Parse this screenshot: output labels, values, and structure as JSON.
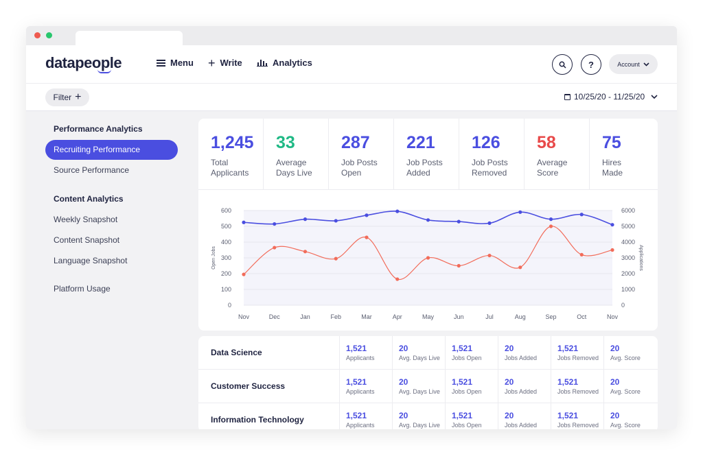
{
  "brand": {
    "logo": "datapeople"
  },
  "nav": {
    "menu": "Menu",
    "write": "Write",
    "analytics": "Analytics"
  },
  "header": {
    "search_icon": "search-icon",
    "help_label": "?",
    "account_label": "Account"
  },
  "filter": {
    "label": "Filter",
    "date_range": "10/25/20 - 11/25/20"
  },
  "sidebar": {
    "performance_heading": "Performance Analytics",
    "performance_items": [
      "Recruiting Performance",
      "Source Performance"
    ],
    "active_item": "Recruiting Performance",
    "content_heading": "Content Analytics",
    "content_items": [
      "Weekly Snapshot",
      "Content Snapshot",
      "Language Snapshot"
    ],
    "platform_item": "Platform Usage"
  },
  "stats": [
    {
      "value": "1,245",
      "label_line1": "Total",
      "label_line2": "Applicants",
      "color": "#4a4ee0"
    },
    {
      "value": "33",
      "label_line1": "Average",
      "label_line2": "Days Live",
      "color": "#1fb985"
    },
    {
      "value": "287",
      "label_line1": "Job Posts",
      "label_line2": "Open",
      "color": "#4a4ee0"
    },
    {
      "value": "221",
      "label_line1": "Job Posts",
      "label_line2": "Added",
      "color": "#4a4ee0"
    },
    {
      "value": "126",
      "label_line1": "Job Posts",
      "label_line2": "Removed",
      "color": "#4a4ee0"
    },
    {
      "value": "58",
      "label_line1": "Average",
      "label_line2": "Score",
      "color": "#e84a4a"
    },
    {
      "value": "75",
      "label_line1": "Hires",
      "label_line2": "Made",
      "color": "#4a4ee0"
    }
  ],
  "chart_data": {
    "type": "line",
    "categories": [
      "Nov",
      "Dec",
      "Jan",
      "Feb",
      "Mar",
      "Apr",
      "May",
      "Jun",
      "Jul",
      "Aug",
      "Sep",
      "Oct",
      "Nov"
    ],
    "ylabel_left": "Open Jobs",
    "ylabel_right": "Applications",
    "ylim_left": [
      0,
      600
    ],
    "ylim_right": [
      0,
      6000
    ],
    "yticks_left": [
      "0",
      "100",
      "200",
      "300",
      "400",
      "500",
      "600"
    ],
    "yticks_right": [
      "0",
      "1000",
      "2000",
      "3000",
      "4000",
      "5000",
      "6000"
    ],
    "series": [
      {
        "axis": "right",
        "color": "#4a4ee0",
        "values": [
          5250,
          5150,
          5450,
          5350,
          5700,
          5950,
          5400,
          5300,
          5200,
          5900,
          5450,
          5750,
          5100
        ]
      },
      {
        "axis": "left",
        "color": "#f26c5a",
        "values": [
          195,
          365,
          340,
          295,
          430,
          165,
          300,
          250,
          315,
          240,
          500,
          320,
          350
        ]
      }
    ],
    "grid": true,
    "shaded_area": true
  },
  "table": {
    "rows": [
      {
        "name": "Data Science",
        "cells": [
          {
            "value": "1,521",
            "label": "Applicants",
            "color": "#4a4ee0"
          },
          {
            "value": "20",
            "label": "Avg. Days Live",
            "color": "#4a4ee0"
          },
          {
            "value": "1,521",
            "label": "Jobs Open",
            "color": "#4a4ee0"
          },
          {
            "value": "20",
            "label": "Jobs Added",
            "color": "#4a4ee0"
          },
          {
            "value": "1,521",
            "label": "Jobs Removed",
            "color": "#4a4ee0"
          },
          {
            "value": "20",
            "label": "Avg. Score",
            "color": "#4a4ee0"
          }
        ]
      },
      {
        "name": "Customer Success",
        "cells": [
          {
            "value": "1,521",
            "label": "Applicants",
            "color": "#4a4ee0"
          },
          {
            "value": "20",
            "label": "Avg. Days Live",
            "color": "#4a4ee0"
          },
          {
            "value": "1,521",
            "label": "Jobs Open",
            "color": "#4a4ee0"
          },
          {
            "value": "20",
            "label": "Jobs Added",
            "color": "#4a4ee0"
          },
          {
            "value": "1,521",
            "label": "Jobs Removed",
            "color": "#4a4ee0"
          },
          {
            "value": "20",
            "label": "Avg. Score",
            "color": "#4a4ee0"
          }
        ]
      },
      {
        "name": "Information Technology",
        "cells": [
          {
            "value": "1,521",
            "label": "Applicants",
            "color": "#4a4ee0"
          },
          {
            "value": "20",
            "label": "Avg. Days Live",
            "color": "#4a4ee0"
          },
          {
            "value": "1,521",
            "label": "Jobs Open",
            "color": "#4a4ee0"
          },
          {
            "value": "20",
            "label": "Jobs Added",
            "color": "#4a4ee0"
          },
          {
            "value": "1,521",
            "label": "Jobs Removed",
            "color": "#4a4ee0"
          },
          {
            "value": "20",
            "label": "Avg. Score",
            "color": "#4a4ee0"
          }
        ]
      }
    ]
  }
}
